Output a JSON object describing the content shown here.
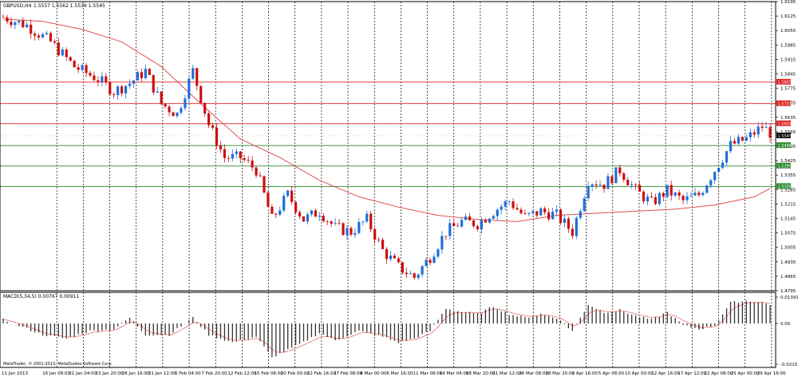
{
  "header": {
    "symbol_label": "GBPUSD,H4",
    "ohlc_label": "1.5557 1.5562 1.5539 1.5545"
  },
  "macd": {
    "label": "MACD(5,34,5) 0.00767 0.00911"
  },
  "copyright": "MetaTrader, © 2001-2013, MetaQuotes Software Corp.",
  "colors": {
    "bull": "#1f6fd8",
    "bear": "#cc1111",
    "ma": "#e05050",
    "resistance": "#e02020",
    "support": "#2a8a2a",
    "hist": "#333333",
    "signal": "#d01010"
  },
  "chart_data": [
    {
      "type": "candlestick",
      "title": "GBPUSD,H4",
      "ylim": [
        1.4795,
        1.6195
      ],
      "y_ticks": [
        "1.6195",
        "1.6125",
        "1.6055",
        "1.5985",
        "1.5915",
        "1.5845",
        "1.5775",
        "1.5705",
        "1.5635",
        "1.5565",
        "1.5495",
        "1.5425",
        "1.5355",
        "1.5285",
        "1.5215",
        "1.5145",
        "1.5075",
        "1.5005",
        "1.4935",
        "1.4865",
        "1.4795"
      ],
      "x_ticks": [
        "11 Jan 2013",
        "16 Jan 08:00",
        "21 Jan 04:00",
        "23 Jan 20:00",
        "28 Jan 16:00",
        "31 Jan 12:00",
        "5 Feb 04:00",
        "7 Feb 20:00",
        "12 Feb 12:00",
        "15 Feb 08:00",
        "20 Feb 00:00",
        "22 Feb 16:00",
        "27 Feb 08:00",
        "4 Mar 00:00",
        "6 Mar 16:00",
        "11 Mar 08:00",
        "14 Mar 04:00",
        "18 Mar 20:00",
        "21 Mar 12:00",
        "26 Mar 08:00",
        "28 Mar 20:00",
        "2 Apr 16:00",
        "5 Apr 08:00",
        "10 Apr 00:00",
        "12 Apr 16:00",
        "17 Apr 12:00",
        "22 Apr 08:00",
        "25 Apr 00:00",
        "29 Apr 16:00"
      ],
      "price_path": [
        [
          0,
          1.612
        ],
        [
          6,
          1.608
        ],
        [
          12,
          1.6
        ],
        [
          18,
          1.588
        ],
        [
          24,
          1.582
        ],
        [
          28,
          1.576
        ],
        [
          32,
          1.58
        ],
        [
          36,
          1.586
        ],
        [
          40,
          1.57
        ],
        [
          44,
          1.565
        ],
        [
          48,
          1.586
        ],
        [
          52,
          1.56
        ],
        [
          56,
          1.544
        ],
        [
          60,
          1.544
        ],
        [
          64,
          1.538
        ],
        [
          68,
          1.514
        ],
        [
          72,
          1.526
        ],
        [
          76,
          1.514
        ],
        [
          80,
          1.518
        ],
        [
          84,
          1.51
        ],
        [
          88,
          1.508
        ],
        [
          92,
          1.514
        ],
        [
          96,
          1.499
        ],
        [
          100,
          1.491
        ],
        [
          104,
          1.486
        ],
        [
          108,
          1.496
        ],
        [
          112,
          1.508
        ],
        [
          116,
          1.513
        ],
        [
          120,
          1.512
        ],
        [
          124,
          1.518
        ],
        [
          128,
          1.523
        ],
        [
          132,
          1.515
        ],
        [
          136,
          1.518
        ],
        [
          140,
          1.516
        ],
        [
          144,
          1.508
        ],
        [
          148,
          1.533
        ],
        [
          152,
          1.531
        ],
        [
          156,
          1.538
        ],
        [
          160,
          1.528
        ],
        [
          164,
          1.522
        ],
        [
          168,
          1.528
        ],
        [
          172,
          1.523
        ],
        [
          176,
          1.526
        ],
        [
          180,
          1.538
        ],
        [
          184,
          1.55
        ],
        [
          188,
          1.553
        ],
        [
          192,
          1.559
        ],
        [
          194,
          1.556
        ]
      ],
      "moving_average": {
        "x": [
          0,
          10,
          20,
          30,
          40,
          50,
          60,
          70,
          80,
          90,
          100,
          110,
          120,
          130,
          140,
          150,
          160,
          170,
          180,
          190,
          194
        ],
        "values": [
          1.611,
          1.61,
          1.606,
          1.6,
          1.588,
          1.57,
          1.553,
          1.544,
          1.533,
          1.525,
          1.52,
          1.516,
          1.514,
          1.513,
          1.516,
          1.517,
          1.518,
          1.519,
          1.521,
          1.525,
          1.529
        ]
      },
      "horizontal_levels": [
        {
          "value": 1.5805,
          "label": "1.5805",
          "kind": "resistance"
        },
        {
          "value": 1.5701,
          "label": "1.5701",
          "kind": "resistance"
        },
        {
          "value": 1.5604,
          "label": "1.5604",
          "kind": "resistance"
        },
        {
          "value": 1.5545,
          "label": "1.5545",
          "kind": "current"
        },
        {
          "value": 1.5498,
          "label": "1.5498",
          "kind": "support"
        },
        {
          "value": 1.5399,
          "label": "1.5399",
          "kind": "support"
        },
        {
          "value": 1.53,
          "label": "1.5300",
          "kind": "support"
        }
      ]
    },
    {
      "type": "bar",
      "title": "MACD(5,34,5) 0.00767 0.00911",
      "ylim": [
        -0.02157,
        0.01391
      ],
      "y_ticks": [
        "0.01391",
        "0.00",
        "-0.02157"
      ],
      "macd_path": [
        [
          0,
          0.002
        ],
        [
          5,
          -0.002
        ],
        [
          10,
          -0.006
        ],
        [
          16,
          -0.008
        ],
        [
          22,
          -0.004
        ],
        [
          28,
          -0.003
        ],
        [
          32,
          0.003
        ],
        [
          36,
          -0.006
        ],
        [
          42,
          -0.006
        ],
        [
          48,
          0.003
        ],
        [
          52,
          -0.006
        ],
        [
          58,
          -0.01
        ],
        [
          64,
          -0.007
        ],
        [
          68,
          -0.018
        ],
        [
          72,
          -0.014
        ],
        [
          76,
          -0.01
        ],
        [
          80,
          -0.005
        ],
        [
          84,
          -0.009
        ],
        [
          90,
          -0.004
        ],
        [
          96,
          -0.007
        ],
        [
          100,
          -0.01
        ],
        [
          104,
          -0.008
        ],
        [
          108,
          -0.004
        ],
        [
          112,
          0.008
        ],
        [
          116,
          0.006
        ],
        [
          120,
          0.005
        ],
        [
          124,
          0.009
        ],
        [
          128,
          0.005
        ],
        [
          132,
          0.003
        ],
        [
          136,
          0.005
        ],
        [
          140,
          0.003
        ],
        [
          144,
          -0.004
        ],
        [
          148,
          0.01
        ],
        [
          152,
          0.006
        ],
        [
          156,
          0.007
        ],
        [
          160,
          0.004
        ],
        [
          164,
          0.002
        ],
        [
          168,
          0.006
        ],
        [
          172,
          -0.001
        ],
        [
          176,
          -0.003
        ],
        [
          180,
          -0.001
        ],
        [
          184,
          0.011
        ],
        [
          188,
          0.012
        ],
        [
          192,
          0.011
        ],
        [
          194,
          0.01
        ]
      ]
    }
  ]
}
